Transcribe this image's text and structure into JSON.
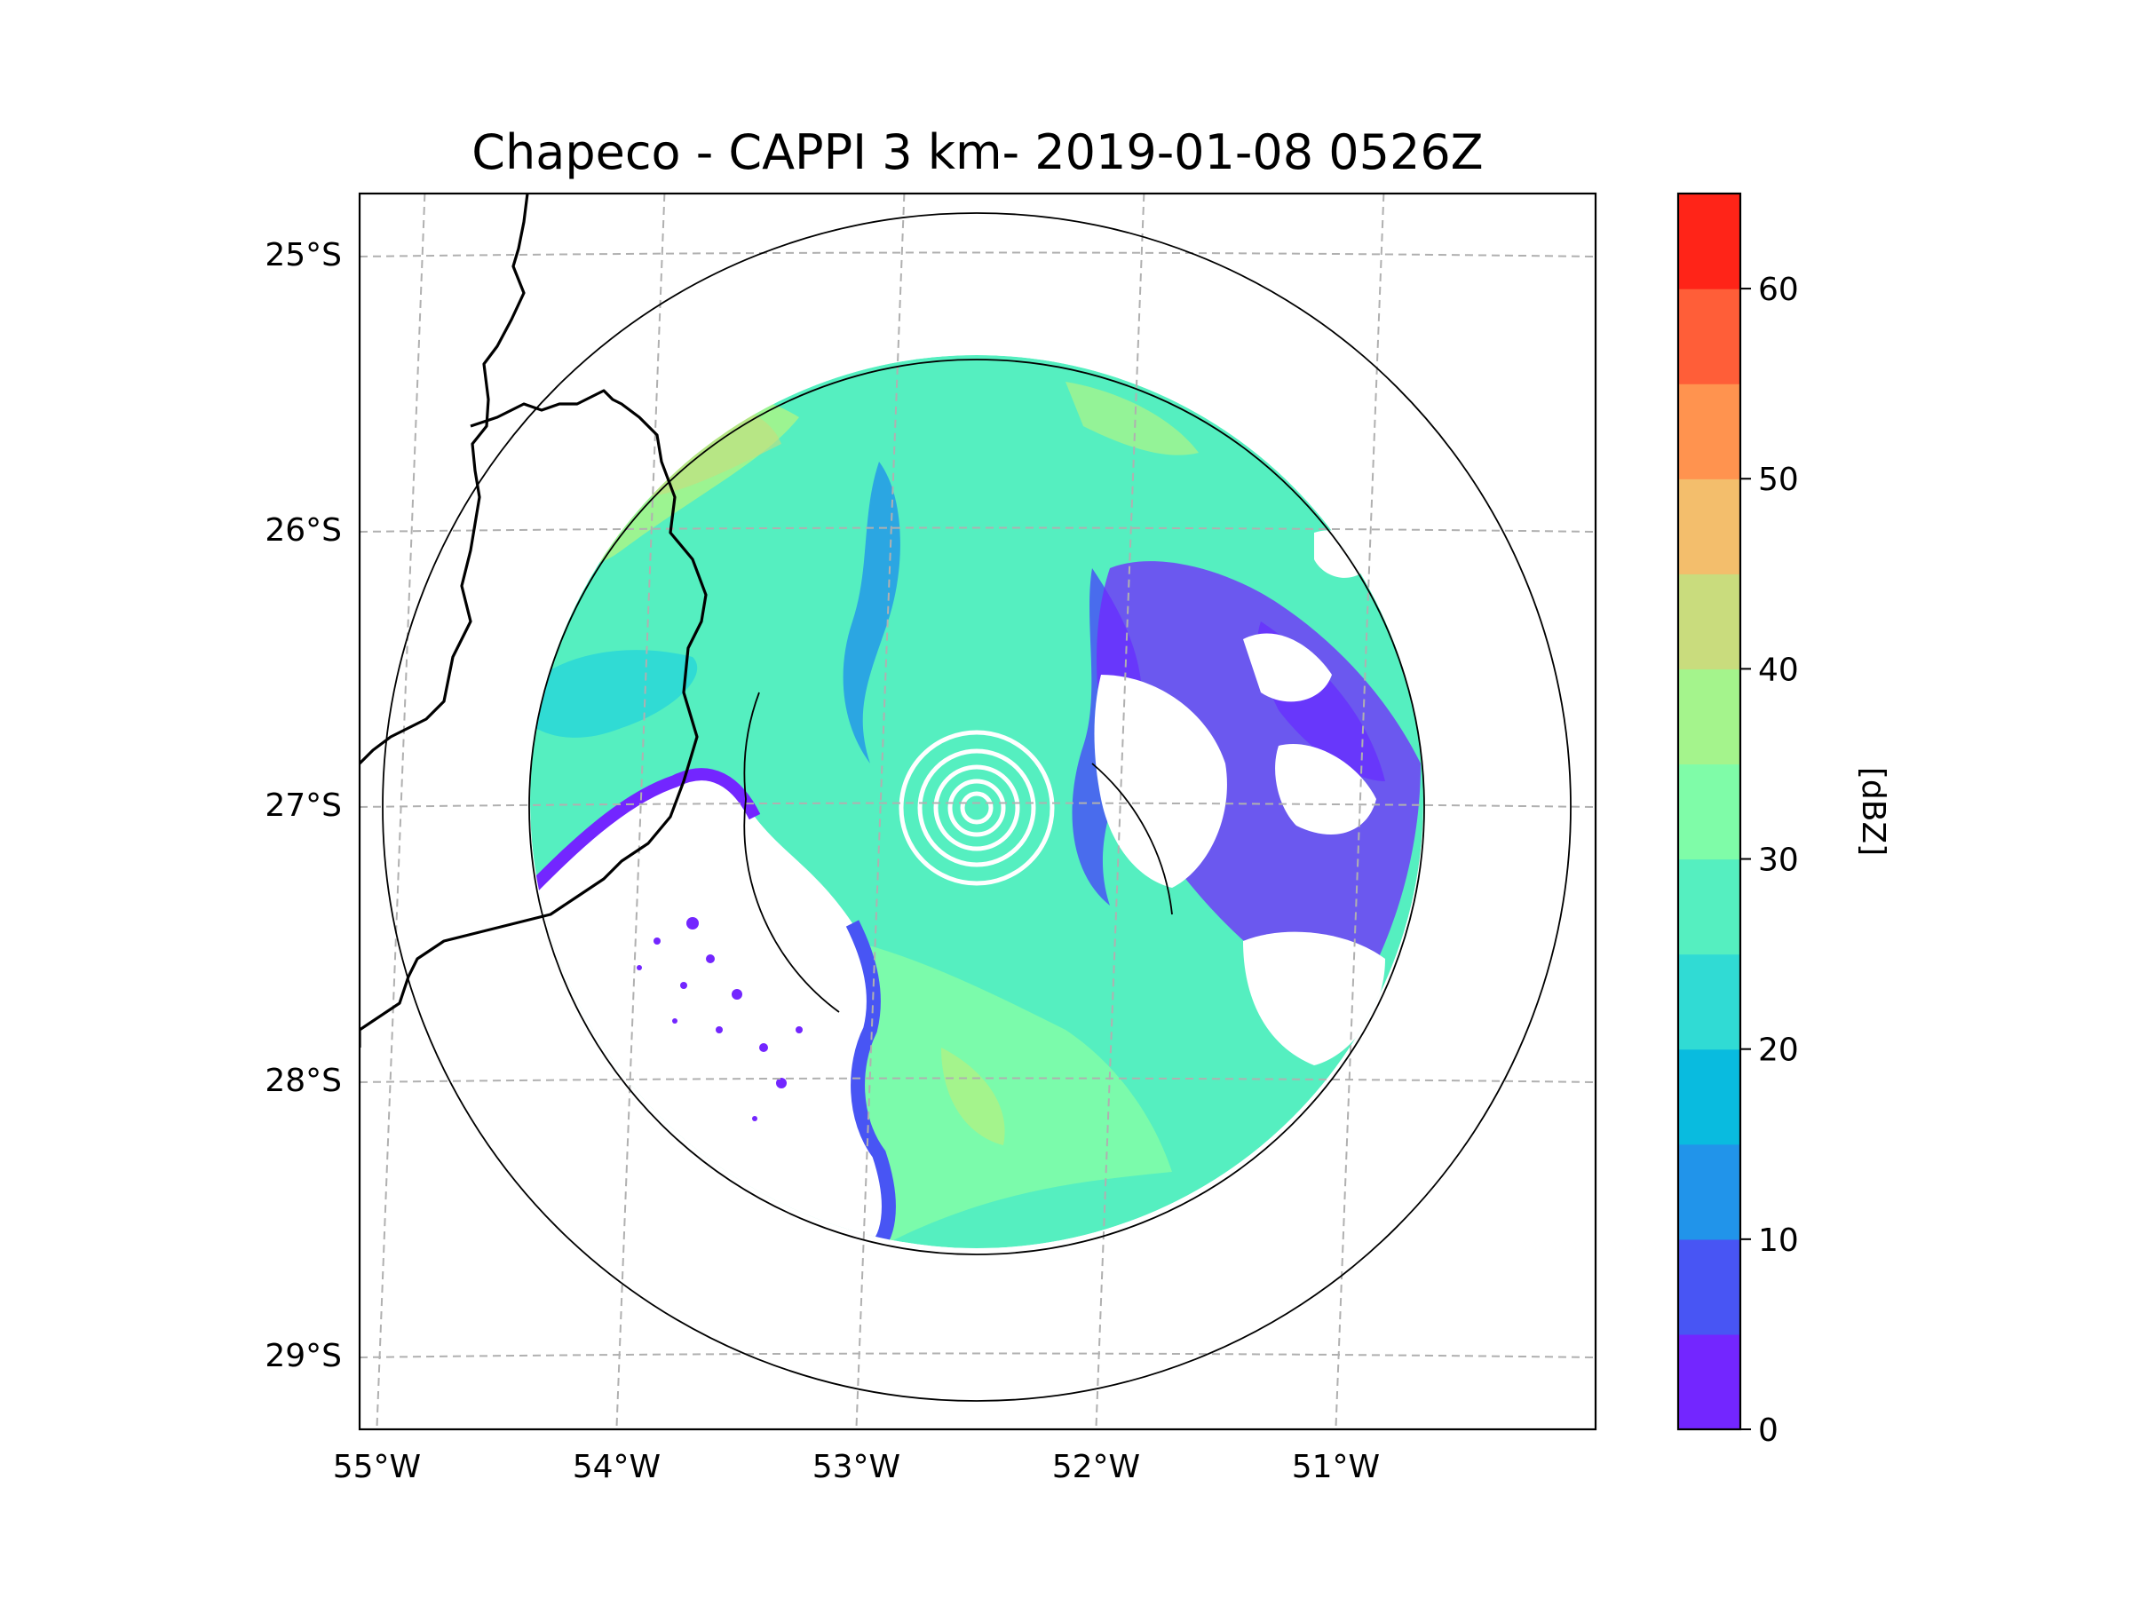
{
  "title": "Chapeco - CAPPI 3 km- 2019-01-08 0526Z",
  "map": {
    "lat_labels": [
      "25°S",
      "26°S",
      "27°S",
      "28°S",
      "29°S"
    ],
    "lon_labels": [
      "55°W",
      "54°W",
      "53°W",
      "52°W",
      "51°W"
    ],
    "latitudes": [
      -25,
      -26,
      -27,
      -28,
      -29
    ],
    "longitudes": [
      -55,
      -54,
      -53,
      -52,
      -51
    ],
    "radar_site": {
      "name": "Chapeco",
      "lat": -27.03,
      "lon": -52.6
    },
    "range_rings": [
      "outer",
      "middle",
      "inner"
    ]
  },
  "colorbar": {
    "label": "[dBZ]",
    "ticks": [
      "0",
      "10",
      "20",
      "30",
      "40",
      "50",
      "60"
    ],
    "tick_values": [
      0,
      10,
      20,
      30,
      40,
      50,
      60
    ],
    "min": 0,
    "max": 65,
    "levels": [
      0,
      5,
      10,
      15,
      20,
      25,
      30,
      35,
      40,
      45,
      50,
      55,
      60,
      65
    ],
    "colors": [
      "#7326ff",
      "#4855f4",
      "#2194ea",
      "#09bbdf",
      "#30dbd4",
      "#55efc0",
      "#7ffca8",
      "#a4f48c",
      "#c9dc7d",
      "#f3be6c",
      "#ff934f",
      "#ff5e38",
      "#ff2418"
    ]
  },
  "colors": {
    "grid": "#b0b0b0",
    "border": "#000000",
    "ring": "#000000",
    "rings_center": "#ffffff"
  }
}
